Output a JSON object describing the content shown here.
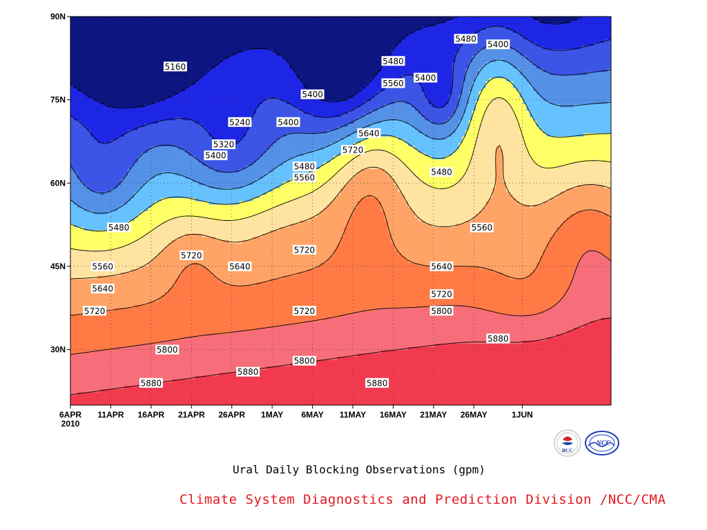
{
  "chart_data": {
    "type": "contour",
    "title": "Ural Daily Blocking Observations (gpm)",
    "x_ticks": [
      "6APR",
      "11APR",
      "16APR",
      "21APR",
      "26APR",
      "1MAY",
      "6MAY",
      "11MAY",
      "16MAY",
      "21MAY",
      "26MAY",
      "1JUN"
    ],
    "x_year_label": "2010",
    "y_ticks": [
      "30N",
      "45N",
      "60N",
      "75N",
      "90N"
    ],
    "xlim": [
      "6APR2010",
      "12JUN2010"
    ],
    "ylim_degrees_north": [
      20,
      90
    ],
    "grid": "dotted",
    "levels": [
      {
        "value": 5160,
        "color": "#0c1580"
      },
      {
        "value": 5240,
        "color": "#1e26e6"
      },
      {
        "value": 5320,
        "color": "#3c55e6"
      },
      {
        "value": 5400,
        "color": "#5591e6"
      },
      {
        "value": 5480,
        "color": "#66c2ff"
      },
      {
        "value": 5560,
        "color": "#ffff66"
      },
      {
        "value": 5640,
        "color": "#ffe3a0"
      },
      {
        "value": 5720,
        "color": "#ffa366"
      },
      {
        "value": 5800,
        "color": "#ff7a45"
      },
      {
        "value": 5880,
        "color": "#f76e7a"
      },
      {
        "value": 9999,
        "color": "#f23a4e"
      }
    ],
    "contour_labels": [
      {
        "text": "5160",
        "date": "19APR",
        "lat": 81
      },
      {
        "text": "5240",
        "date": "27APR",
        "lat": 71
      },
      {
        "text": "5320",
        "date": "25APR",
        "lat": 67
      },
      {
        "text": "5400",
        "date": "24APR",
        "lat": 65
      },
      {
        "text": "5400",
        "date": "3MAY",
        "lat": 71
      },
      {
        "text": "5400",
        "date": "6MAY",
        "lat": 76
      },
      {
        "text": "5400",
        "date": "20MAY",
        "lat": 79
      },
      {
        "text": "5400",
        "date": "29MAY",
        "lat": 85
      },
      {
        "text": "5480",
        "date": "12APR",
        "lat": 52
      },
      {
        "text": "5480",
        "date": "5MAY",
        "lat": 63
      },
      {
        "text": "5480",
        "date": "16MAY",
        "lat": 82
      },
      {
        "text": "5480",
        "date": "22MAY",
        "lat": 62
      },
      {
        "text": "5480",
        "date": "25MAY",
        "lat": 86
      },
      {
        "text": "5560",
        "date": "10APR",
        "lat": 45
      },
      {
        "text": "5560",
        "date": "5MAY",
        "lat": 61
      },
      {
        "text": "5560",
        "date": "16MAY",
        "lat": 78
      },
      {
        "text": "5560",
        "date": "27MAY",
        "lat": 52
      },
      {
        "text": "5640",
        "date": "10APR",
        "lat": 41
      },
      {
        "text": "5640",
        "date": "27APR",
        "lat": 45
      },
      {
        "text": "5640",
        "date": "13MAY",
        "lat": 69
      },
      {
        "text": "5640",
        "date": "22MAY",
        "lat": 45
      },
      {
        "text": "5720",
        "date": "9APR",
        "lat": 37
      },
      {
        "text": "5720",
        "date": "21APR",
        "lat": 47
      },
      {
        "text": "5720",
        "date": "5MAY",
        "lat": 48
      },
      {
        "text": "5720",
        "date": "5MAY",
        "lat": 37
      },
      {
        "text": "5720",
        "date": "11MAY",
        "lat": 66
      },
      {
        "text": "5720",
        "date": "22MAY",
        "lat": 40
      },
      {
        "text": "5800",
        "date": "18APR",
        "lat": 30
      },
      {
        "text": "5800",
        "date": "5MAY",
        "lat": 28
      },
      {
        "text": "5800",
        "date": "22MAY",
        "lat": 37
      },
      {
        "text": "5880",
        "date": "16APR",
        "lat": 24
      },
      {
        "text": "5880",
        "date": "28APR",
        "lat": 26
      },
      {
        "text": "5880",
        "date": "14MAY",
        "lat": 24
      },
      {
        "text": "5880",
        "date": "29MAY",
        "lat": 32
      }
    ]
  },
  "credit": "Climate System Diagnostics and Prediction Division /NCC/CMA",
  "logos": {
    "left": {
      "icon": "bcc-logo",
      "text": "BCC"
    },
    "right": {
      "icon": "ncc-logo",
      "text": "NCC"
    }
  }
}
